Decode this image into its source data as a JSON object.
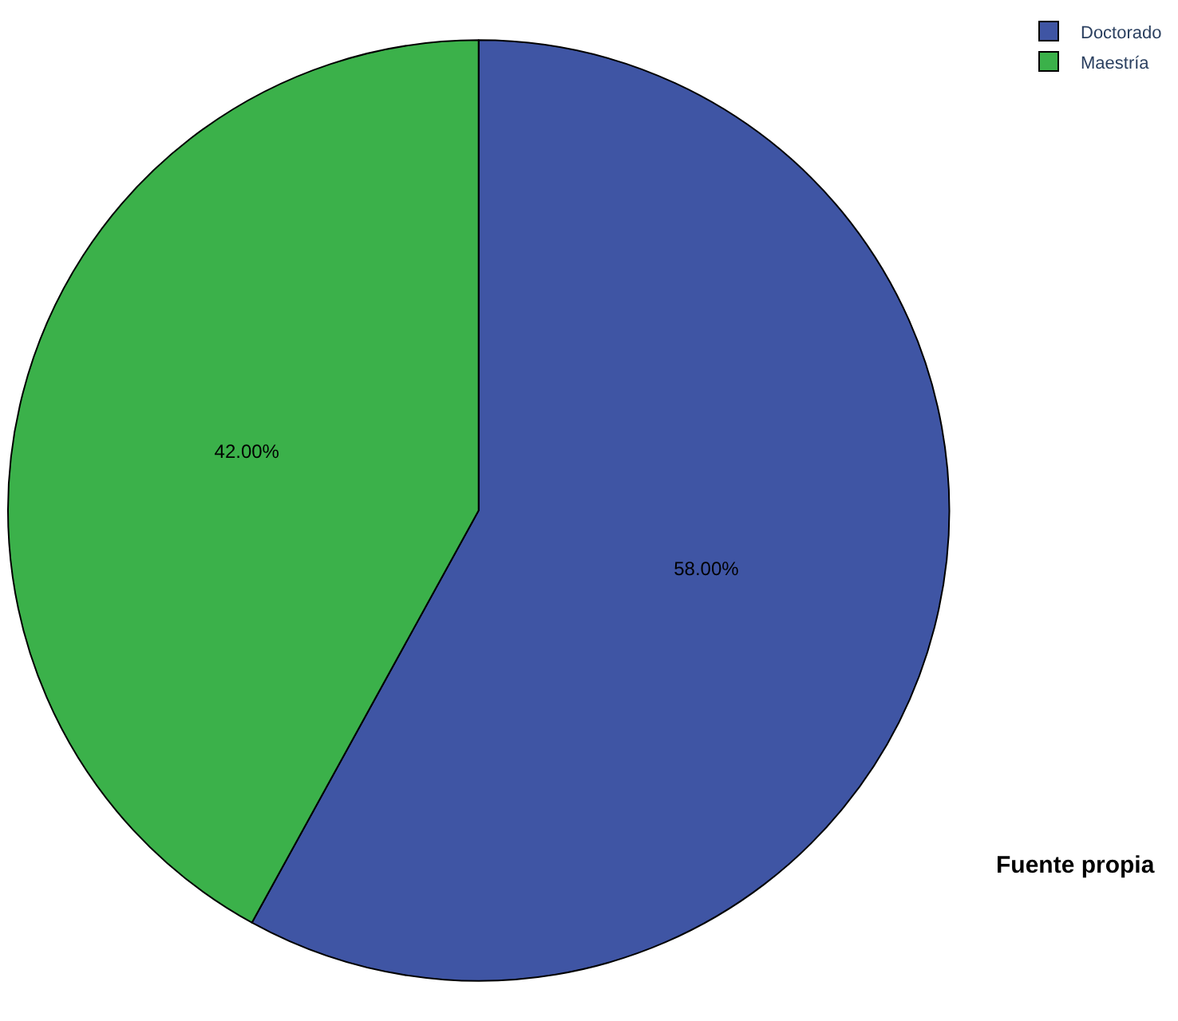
{
  "chart_data": {
    "type": "pie",
    "categories": [
      "Doctorado",
      "Maestría"
    ],
    "values": [
      58,
      42
    ],
    "colors": [
      "#3f55a4",
      "#3bb14a"
    ],
    "value_labels": [
      "58.00%",
      "42.00%"
    ],
    "legend": "top right",
    "annotations": [
      "Fuente propia"
    ]
  }
}
